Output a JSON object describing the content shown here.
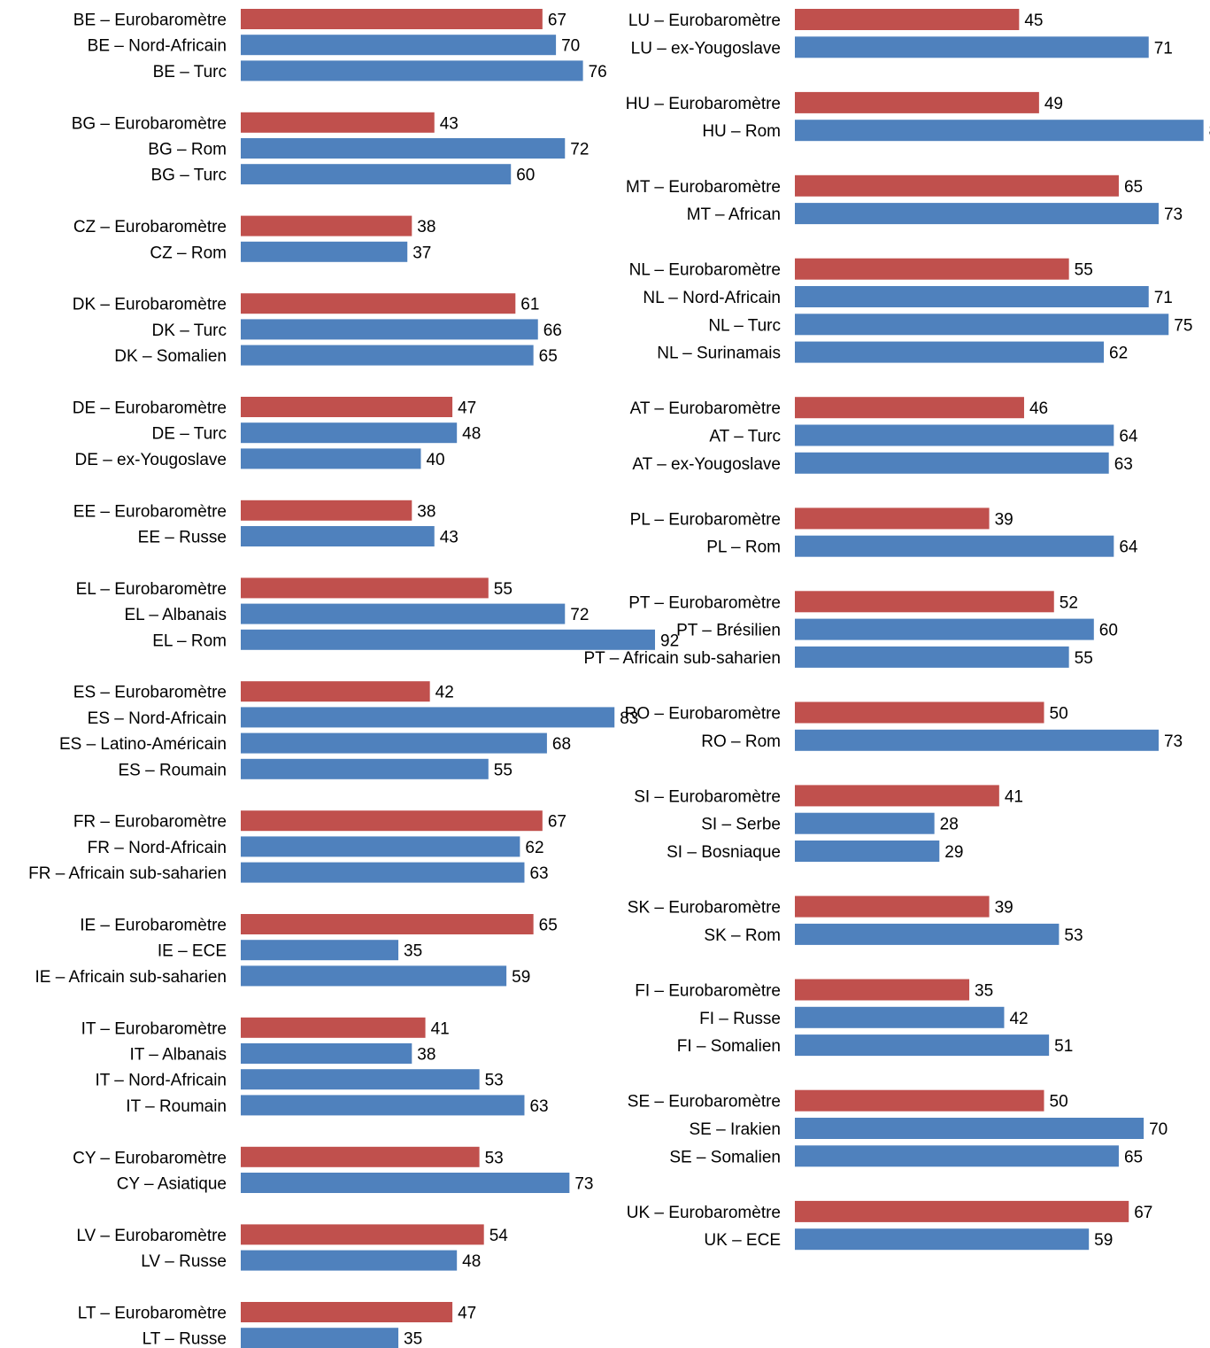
{
  "chart_data": [
    {
      "type": "bar",
      "orientation": "horizontal",
      "series_colors": {
        "eurobarometre": "#C0504D",
        "group": "#4F81BD"
      },
      "groups": [
        {
          "country": "BE",
          "bars": [
            {
              "label": "BE – Eurobaromètre",
              "value": 67,
              "series": "eurobarometre"
            },
            {
              "label": "BE – Nord-Africain",
              "value": 70,
              "series": "group"
            },
            {
              "label": "BE – Turc",
              "value": 76,
              "series": "group"
            }
          ]
        },
        {
          "country": "BG",
          "bars": [
            {
              "label": "BG – Eurobaromètre",
              "value": 43,
              "series": "eurobarometre"
            },
            {
              "label": "BG – Rom",
              "value": 72,
              "series": "group"
            },
            {
              "label": "BG – Turc",
              "value": 60,
              "series": "group"
            }
          ]
        },
        {
          "country": "CZ",
          "bars": [
            {
              "label": "CZ – Eurobaromètre",
              "value": 38,
              "series": "eurobarometre"
            },
            {
              "label": "CZ – Rom",
              "value": 37,
              "series": "group"
            }
          ]
        },
        {
          "country": "DK",
          "bars": [
            {
              "label": "DK – Eurobaromètre",
              "value": 61,
              "series": "eurobarometre"
            },
            {
              "label": "DK – Turc",
              "value": 66,
              "series": "group"
            },
            {
              "label": "DK – Somalien",
              "value": 65,
              "series": "group"
            }
          ]
        },
        {
          "country": "DE",
          "bars": [
            {
              "label": "DE – Eurobaromètre",
              "value": 47,
              "series": "eurobarometre"
            },
            {
              "label": "DE – Turc",
              "value": 48,
              "series": "group"
            },
            {
              "label": "DE – ex-Yougoslave",
              "value": 40,
              "series": "group"
            }
          ]
        },
        {
          "country": "EE",
          "bars": [
            {
              "label": "EE – Eurobaromètre",
              "value": 38,
              "series": "eurobarometre"
            },
            {
              "label": "EE – Russe",
              "value": 43,
              "series": "group"
            }
          ]
        },
        {
          "country": "EL",
          "bars": [
            {
              "label": "EL – Eurobaromètre",
              "value": 55,
              "series": "eurobarometre"
            },
            {
              "label": "EL – Albanais",
              "value": 72,
              "series": "group"
            },
            {
              "label": "EL – Rom",
              "value": 92,
              "series": "group"
            }
          ]
        },
        {
          "country": "ES",
          "bars": [
            {
              "label": "ES – Eurobaromètre",
              "value": 42,
              "series": "eurobarometre"
            },
            {
              "label": "ES – Nord-Africain",
              "value": 83,
              "series": "group"
            },
            {
              "label": "ES – Latino-Américain",
              "value": 68,
              "series": "group"
            },
            {
              "label": "ES – Roumain",
              "value": 55,
              "series": "group"
            }
          ]
        },
        {
          "country": "FR",
          "bars": [
            {
              "label": "FR – Eurobaromètre",
              "value": 67,
              "series": "eurobarometre"
            },
            {
              "label": "FR – Nord-Africain",
              "value": 62,
              "series": "group"
            },
            {
              "label": "FR – Africain sub-saharien",
              "value": 63,
              "series": "group"
            }
          ]
        },
        {
          "country": "IE",
          "bars": [
            {
              "label": "IE – Eurobaromètre",
              "value": 65,
              "series": "eurobarometre"
            },
            {
              "label": "IE – ECE",
              "value": 35,
              "series": "group"
            },
            {
              "label": "IE – Africain sub-saharien",
              "value": 59,
              "series": "group"
            }
          ]
        },
        {
          "country": "IT",
          "bars": [
            {
              "label": "IT – Eurobaromètre",
              "value": 41,
              "series": "eurobarometre"
            },
            {
              "label": "IT – Albanais",
              "value": 38,
              "series": "group"
            },
            {
              "label": "IT – Nord-Africain",
              "value": 53,
              "series": "group"
            },
            {
              "label": "IT – Roumain",
              "value": 63,
              "series": "group"
            }
          ]
        },
        {
          "country": "CY",
          "bars": [
            {
              "label": "CY – Eurobaromètre",
              "value": 53,
              "series": "eurobarometre"
            },
            {
              "label": "CY – Asiatique",
              "value": 73,
              "series": "group"
            }
          ]
        },
        {
          "country": "LV",
          "bars": [
            {
              "label": "LV – Eurobaromètre",
              "value": 54,
              "series": "eurobarometre"
            },
            {
              "label": "LV – Russe",
              "value": 48,
              "series": "group"
            }
          ]
        },
        {
          "country": "LT",
          "bars": [
            {
              "label": "LT – Eurobaromètre",
              "value": 47,
              "series": "eurobarometre"
            },
            {
              "label": "LT – Russe",
              "value": 35,
              "series": "group"
            }
          ]
        }
      ]
    },
    {
      "type": "bar",
      "orientation": "horizontal",
      "series_colors": {
        "eurobarometre": "#C0504D",
        "group": "#4F81BD"
      },
      "groups": [
        {
          "country": "LU",
          "bars": [
            {
              "label": "LU – Eurobaromètre",
              "value": 45,
              "series": "eurobarometre"
            },
            {
              "label": "LU – ex-Yougoslave",
              "value": 71,
              "series": "group"
            }
          ]
        },
        {
          "country": "HU",
          "bars": [
            {
              "label": "HU – Eurobaromètre",
              "value": 49,
              "series": "eurobarometre"
            },
            {
              "label": "HU – Rom",
              "value": 82,
              "series": "group"
            }
          ]
        },
        {
          "country": "MT",
          "bars": [
            {
              "label": "MT – Eurobaromètre",
              "value": 65,
              "series": "eurobarometre"
            },
            {
              "label": "MT – African",
              "value": 73,
              "series": "group"
            }
          ]
        },
        {
          "country": "NL",
          "bars": [
            {
              "label": "NL – Eurobaromètre",
              "value": 55,
              "series": "eurobarometre"
            },
            {
              "label": "NL – Nord-Africain",
              "value": 71,
              "series": "group"
            },
            {
              "label": "NL – Turc",
              "value": 75,
              "series": "group"
            },
            {
              "label": "NL – Surinamais",
              "value": 62,
              "series": "group"
            }
          ]
        },
        {
          "country": "AT",
          "bars": [
            {
              "label": "AT – Eurobaromètre",
              "value": 46,
              "series": "eurobarometre"
            },
            {
              "label": "AT – Turc",
              "value": 64,
              "series": "group"
            },
            {
              "label": "AT – ex-Yougoslave",
              "value": 63,
              "series": "group"
            }
          ]
        },
        {
          "country": "PL",
          "bars": [
            {
              "label": "PL – Eurobaromètre",
              "value": 39,
              "series": "eurobarometre"
            },
            {
              "label": "PL – Rom",
              "value": 64,
              "series": "group"
            }
          ]
        },
        {
          "country": "PT",
          "bars": [
            {
              "label": "PT – Eurobaromètre",
              "value": 52,
              "series": "eurobarometre"
            },
            {
              "label": "PT – Brésilien",
              "value": 60,
              "series": "group"
            },
            {
              "label": "PT – Africain sub-saharien",
              "value": 55,
              "series": "group"
            }
          ]
        },
        {
          "country": "RO",
          "bars": [
            {
              "label": "RO – Eurobaromètre",
              "value": 50,
              "series": "eurobarometre"
            },
            {
              "label": "RO – Rom",
              "value": 73,
              "series": "group"
            }
          ]
        },
        {
          "country": "SI",
          "bars": [
            {
              "label": "SI – Eurobaromètre",
              "value": 41,
              "series": "eurobarometre"
            },
            {
              "label": "SI – Serbe",
              "value": 28,
              "series": "group"
            },
            {
              "label": "SI – Bosniaque",
              "value": 29,
              "series": "group"
            }
          ]
        },
        {
          "country": "SK",
          "bars": [
            {
              "label": "SK – Eurobaromètre",
              "value": 39,
              "series": "eurobarometre"
            },
            {
              "label": "SK – Rom",
              "value": 53,
              "series": "group"
            }
          ]
        },
        {
          "country": "FI",
          "bars": [
            {
              "label": "FI – Eurobaromètre",
              "value": 35,
              "series": "eurobarometre"
            },
            {
              "label": "FI – Russe",
              "value": 42,
              "series": "group"
            },
            {
              "label": "FI – Somalien",
              "value": 51,
              "series": "group"
            }
          ]
        },
        {
          "country": "SE",
          "bars": [
            {
              "label": "SE – Eurobaromètre",
              "value": 50,
              "series": "eurobarometre"
            },
            {
              "label": "SE – Irakien",
              "value": 70,
              "series": "group"
            },
            {
              "label": "SE – Somalien",
              "value": 65,
              "series": "group"
            }
          ]
        },
        {
          "country": "UK",
          "bars": [
            {
              "label": "UK – Eurobaromètre",
              "value": 67,
              "series": "eurobarometre"
            },
            {
              "label": "UK – ECE",
              "value": 59,
              "series": "group"
            }
          ]
        }
      ]
    }
  ]
}
